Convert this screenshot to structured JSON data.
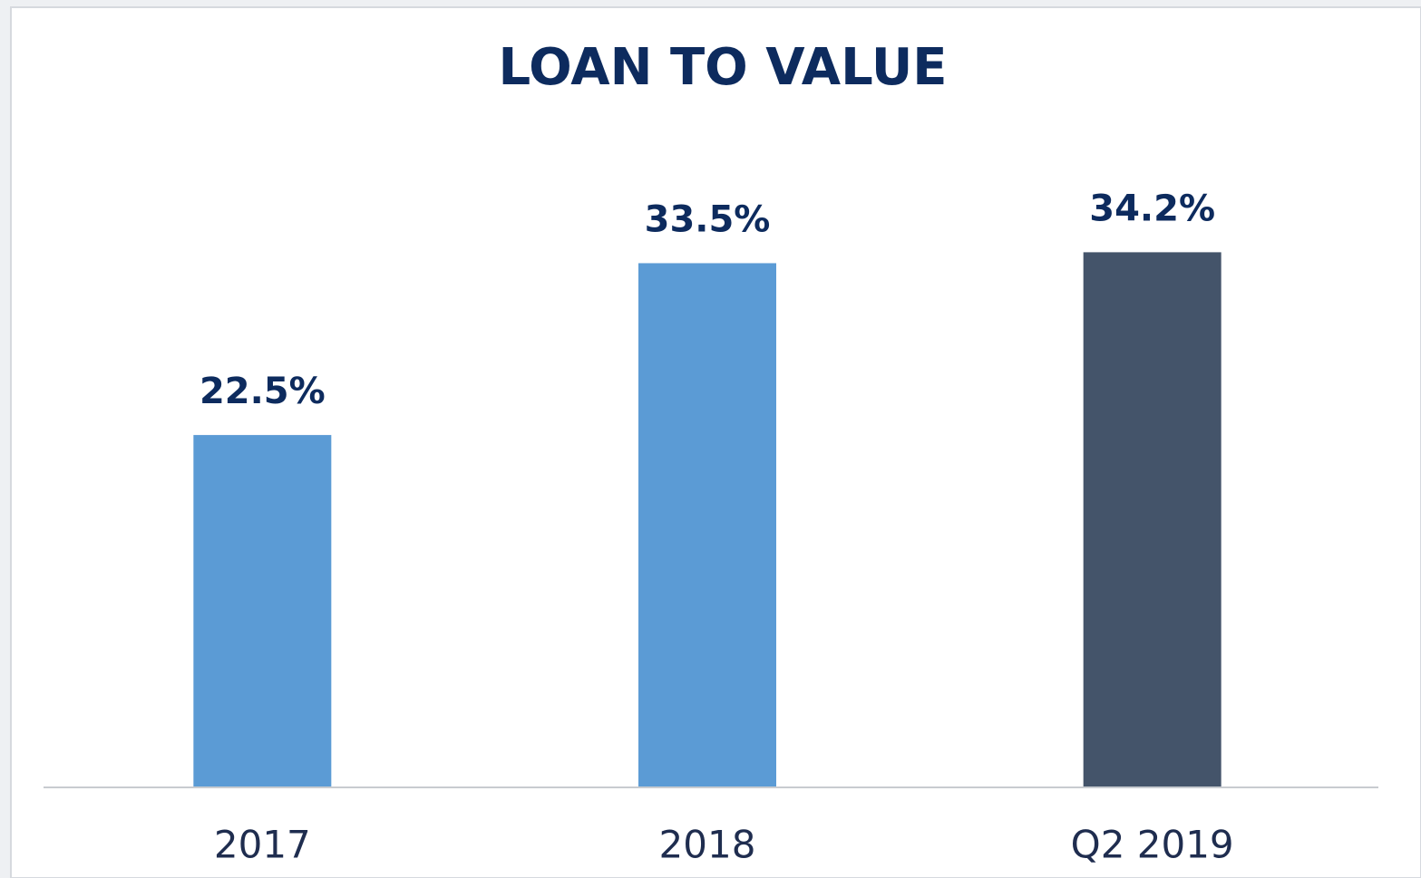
{
  "chart_data": {
    "type": "bar",
    "title": "LOAN TO VALUE",
    "categories": [
      "2017",
      "2018",
      "Q2 2019"
    ],
    "values": [
      22.5,
      33.5,
      34.2
    ],
    "value_labels": [
      "22.5%",
      "33.5%",
      "34.2%"
    ],
    "colors": [
      "#5b9bd5",
      "#5b9bd5",
      "#44546a"
    ]
  }
}
